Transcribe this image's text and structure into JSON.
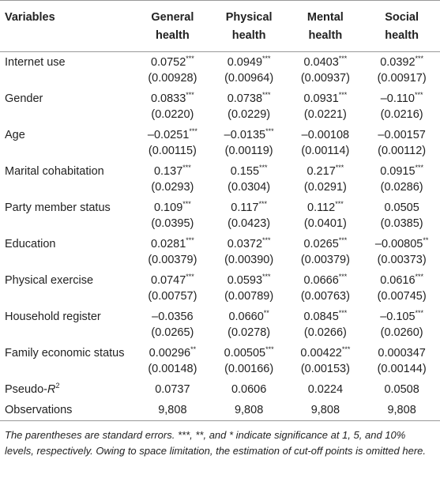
{
  "header": [
    "Variables",
    "General health",
    "Physical health",
    "Mental health",
    "Social health"
  ],
  "rows": [
    {
      "label": "Internet use",
      "cells": [
        {
          "coef": "0.0752",
          "stars": "***",
          "se": "(0.00928)"
        },
        {
          "coef": "0.0949",
          "stars": "***",
          "se": "(0.00964)"
        },
        {
          "coef": "0.0403",
          "stars": "***",
          "se": "(0.00937)"
        },
        {
          "coef": "0.0392",
          "stars": "***",
          "se": "(0.00917)"
        }
      ]
    },
    {
      "label": "Gender",
      "cells": [
        {
          "coef": "0.0833",
          "stars": "***",
          "se": "(0.0220)"
        },
        {
          "coef": "0.0738",
          "stars": "***",
          "se": "(0.0229)"
        },
        {
          "coef": "0.0931",
          "stars": "***",
          "se": "(0.0221)"
        },
        {
          "coef": "–0.110",
          "stars": "***",
          "se": "(0.0216)"
        }
      ]
    },
    {
      "label": "Age",
      "cells": [
        {
          "coef": "–0.0251",
          "stars": "***",
          "se": "(0.00115)"
        },
        {
          "coef": "–0.0135",
          "stars": "***",
          "se": "(0.00119)"
        },
        {
          "coef": "–0.00108",
          "se": "(0.00114)"
        },
        {
          "coef": "–0.00157",
          "se": "(0.00112)"
        }
      ]
    },
    {
      "label": "Marital cohabitation",
      "cells": [
        {
          "coef": "0.137",
          "stars": "***",
          "se": "(0.0293)"
        },
        {
          "coef": "0.155",
          "stars": "***",
          "se": "(0.0304)"
        },
        {
          "coef": "0.217",
          "stars": "***",
          "se": "(0.0291)"
        },
        {
          "coef": "0.0915",
          "stars": "***",
          "se": "(0.0286)"
        }
      ]
    },
    {
      "label": "Party member status",
      "cells": [
        {
          "coef": "0.109",
          "stars": "***",
          "se": "(0.0395)"
        },
        {
          "coef": "0.117",
          "stars": "***",
          "se": "(0.0423)"
        },
        {
          "coef": "0.112",
          "stars": "***",
          "se": "(0.0401)"
        },
        {
          "coef": "0.0505",
          "se": "(0.0385)"
        }
      ]
    },
    {
      "label": "Education",
      "cells": [
        {
          "coef": "0.0281",
          "stars": "***",
          "se": "(0.00379)"
        },
        {
          "coef": "0.0372",
          "stars": "***",
          "se": "(0.00390)"
        },
        {
          "coef": "0.0265",
          "stars": "***",
          "se": "(0.00379)"
        },
        {
          "coef": "–0.00805",
          "stars": "**",
          "se": "(0.00373)"
        }
      ]
    },
    {
      "label": "Physical exercise",
      "cells": [
        {
          "coef": "0.0747",
          "stars": "***",
          "se": "(0.00757)"
        },
        {
          "coef": "0.0593",
          "stars": "***",
          "se": "(0.00789)"
        },
        {
          "coef": "0.0666",
          "stars": "***",
          "se": "(0.00763)"
        },
        {
          "coef": "0.0616",
          "stars": "***",
          "se": "(0.00745)"
        }
      ]
    },
    {
      "label": "Household register",
      "cells": [
        {
          "coef": "–0.0356",
          "se": "(0.0265)"
        },
        {
          "coef": "0.0660",
          "stars": "**",
          "se": "(0.0278)"
        },
        {
          "coef": "0.0845",
          "stars": "***",
          "se": "(0.0266)"
        },
        {
          "coef": "–0.105",
          "stars": "***",
          "se": "(0.0260)"
        }
      ]
    },
    {
      "label": "Family economic status",
      "cells": [
        {
          "coef": "0.00296",
          "stars": "**",
          "se": "(0.00148)"
        },
        {
          "coef": "0.00505",
          "stars": "***",
          "se": "(0.00166)"
        },
        {
          "coef": "0.00422",
          "stars": "***",
          "se": "(0.00153)"
        },
        {
          "coef": "0.000347",
          "se": "(0.00144)"
        }
      ]
    }
  ],
  "fit_rows": [
    {
      "label": {
        "text": "Pseudo-",
        "var": "R",
        "sup": "2"
      },
      "values": [
        "0.0737",
        "0.0606",
        "0.0224",
        "0.0508"
      ]
    },
    {
      "label": {
        "text": "Observations"
      },
      "values": [
        "9,808",
        "9,808",
        "9,808",
        "9,808"
      ]
    }
  ],
  "footnote": "The parentheses are standard errors. ***, **, and * indicate significance at 1, 5, and 10% levels, respectively. Owing to space limitation, the estimation of cut-off points is omitted here."
}
